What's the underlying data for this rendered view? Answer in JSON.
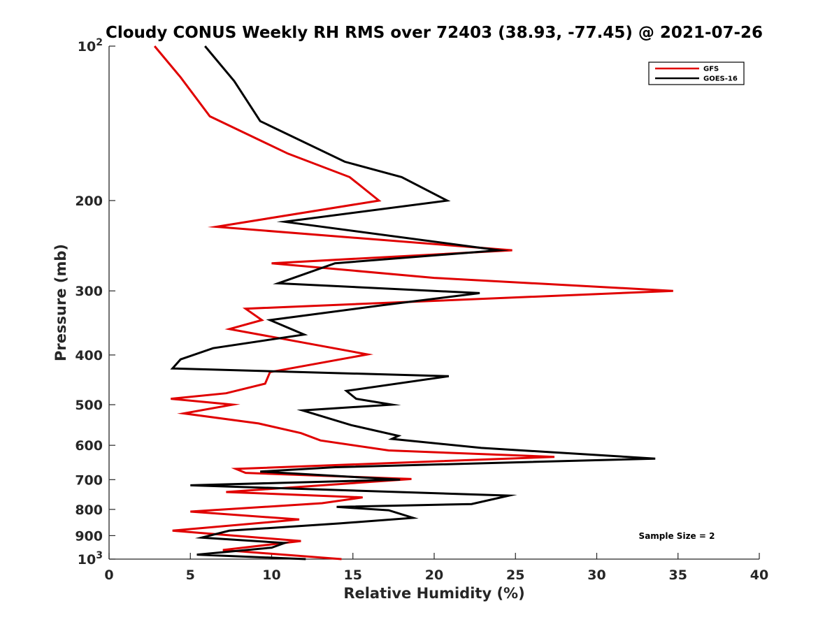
{
  "chart_data": {
    "type": "line",
    "title": "Cloudy CONUS Weekly RH RMS over 72403 (38.93, -77.45) @ 2021-07-26",
    "xlabel": "Relative Humidity (%)",
    "ylabel": "Pressure (mb)",
    "xlim": [
      0,
      40
    ],
    "ylim": [
      100,
      1000
    ],
    "y_scale": "log",
    "y_reversed": true,
    "grid": false,
    "legend_position": "top-right",
    "x_ticks": [
      "0",
      "5",
      "10",
      "15",
      "20",
      "25",
      "30",
      "35",
      "40"
    ],
    "y_ticks": [
      {
        "value": 100,
        "base": "10",
        "exp": "2"
      },
      {
        "value": 200,
        "label": "200"
      },
      {
        "value": 300,
        "label": "300"
      },
      {
        "value": 400,
        "label": "400"
      },
      {
        "value": 500,
        "label": "500"
      },
      {
        "value": 600,
        "label": "600"
      },
      {
        "value": 700,
        "label": "700"
      },
      {
        "value": 800,
        "label": "800"
      },
      {
        "value": 900,
        "label": "900"
      },
      {
        "value": 1000,
        "base": "10",
        "exp": "3"
      }
    ],
    "annotation": "Sample Size = 2",
    "series": [
      {
        "name": "GFS",
        "color": "#e00000",
        "points": [
          [
            2.8,
            100
          ],
          [
            4.4,
            115
          ],
          [
            6.2,
            137
          ],
          [
            11.0,
            162
          ],
          [
            14.8,
            180
          ],
          [
            16.6,
            200
          ],
          [
            6.6,
            225
          ],
          [
            24.8,
            250
          ],
          [
            10.0,
            265
          ],
          [
            20.0,
            283
          ],
          [
            34.7,
            300
          ],
          [
            8.4,
            325
          ],
          [
            9.4,
            342
          ],
          [
            7.4,
            356
          ],
          [
            15.9,
            399
          ],
          [
            9.9,
            432
          ],
          [
            9.6,
            455
          ],
          [
            7.2,
            475
          ],
          [
            3.8,
            487
          ],
          [
            7.6,
            500
          ],
          [
            4.6,
            520
          ],
          [
            9.2,
            544
          ],
          [
            11.8,
            568
          ],
          [
            13.0,
            587
          ],
          [
            17.2,
            614
          ],
          [
            27.4,
            632
          ],
          [
            7.8,
            667
          ],
          [
            8.4,
            679
          ],
          [
            18.6,
            698
          ],
          [
            7.2,
            740
          ],
          [
            15.6,
            758
          ],
          [
            13.1,
            778
          ],
          [
            5.0,
            808
          ],
          [
            11.7,
            837
          ],
          [
            3.9,
            880
          ],
          [
            11.8,
            922
          ],
          [
            7.0,
            960
          ],
          [
            14.3,
            1000
          ]
        ]
      },
      {
        "name": "GOES-16",
        "color": "#000000",
        "points": [
          [
            5.9,
            100
          ],
          [
            7.7,
            117
          ],
          [
            9.3,
            140
          ],
          [
            14.5,
            168
          ],
          [
            18.0,
            180
          ],
          [
            20.8,
            200
          ],
          [
            10.8,
            220
          ],
          [
            24.0,
            250
          ],
          [
            13.9,
            265
          ],
          [
            10.4,
            290
          ],
          [
            22.8,
            303
          ],
          [
            16.8,
            320
          ],
          [
            9.9,
            342
          ],
          [
            12.0,
            365
          ],
          [
            6.4,
            388
          ],
          [
            4.4,
            408
          ],
          [
            3.9,
            425
          ],
          [
            20.9,
            440
          ],
          [
            14.6,
            470
          ],
          [
            15.2,
            487
          ],
          [
            17.4,
            500
          ],
          [
            11.9,
            513
          ],
          [
            14.9,
            548
          ],
          [
            17.8,
            575
          ],
          [
            17.4,
            583
          ],
          [
            22.9,
            607
          ],
          [
            33.6,
            637
          ],
          [
            13.9,
            662
          ],
          [
            9.3,
            675
          ],
          [
            17.9,
            700
          ],
          [
            5.0,
            718
          ],
          [
            24.6,
            752
          ],
          [
            22.3,
            781
          ],
          [
            14.0,
            791
          ],
          [
            17.2,
            803
          ],
          [
            18.7,
            831
          ],
          [
            14.2,
            852
          ],
          [
            7.4,
            880
          ],
          [
            5.7,
            908
          ],
          [
            10.8,
            930
          ],
          [
            10.0,
            950
          ],
          [
            5.4,
            980
          ],
          [
            12.1,
            1000
          ]
        ]
      }
    ]
  }
}
